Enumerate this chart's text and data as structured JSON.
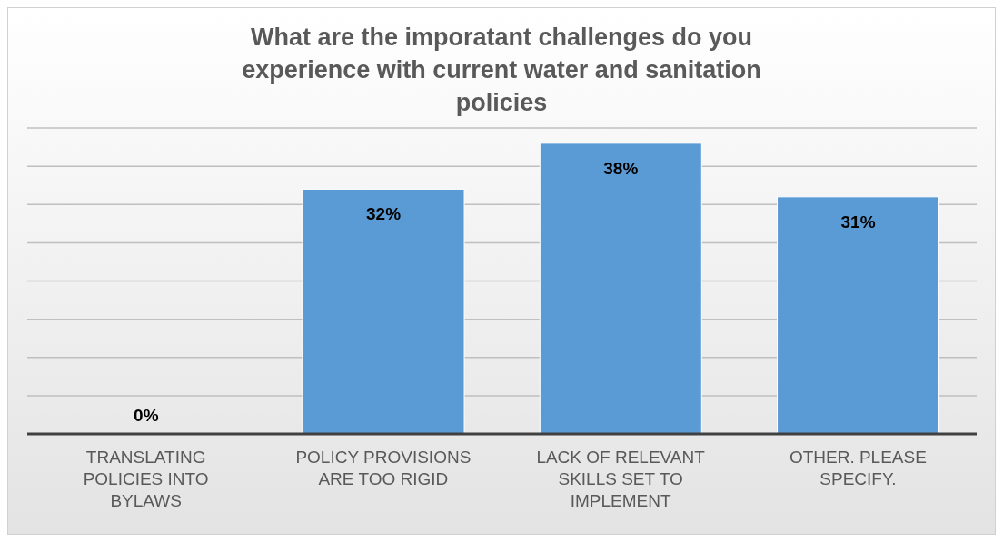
{
  "chart_data": {
    "type": "bar",
    "title": "What are the imporatant challenges do you experience with current water and sanitation policies",
    "categories": [
      "TRANSLATING POLICIES INTO BYLAWS",
      "POLICY PROVISIONS ARE TOO RIGID",
      "LACK OF RELEVANT SKILLS SET TO IMPLEMENT",
      "OTHER. PLEASE SPECIFY."
    ],
    "values": [
      0,
      32,
      38,
      31
    ],
    "value_labels": [
      "0%",
      "32%",
      "38%",
      "31%"
    ],
    "color": "#5b9bd5",
    "ylim": [
      0,
      40
    ],
    "yticks": [
      {
        "value": 0,
        "label": null
      },
      {
        "value": 5,
        "label": null
      },
      {
        "value": 10,
        "label": null
      },
      {
        "value": 15,
        "label": null
      },
      {
        "value": 20,
        "label": null
      },
      {
        "value": 25,
        "label": null
      },
      {
        "value": 30,
        "label": null
      },
      {
        "value": 35,
        "label": null
      },
      {
        "value": 40,
        "label": null
      }
    ],
    "grid": "y",
    "tick_labels": "x"
  }
}
